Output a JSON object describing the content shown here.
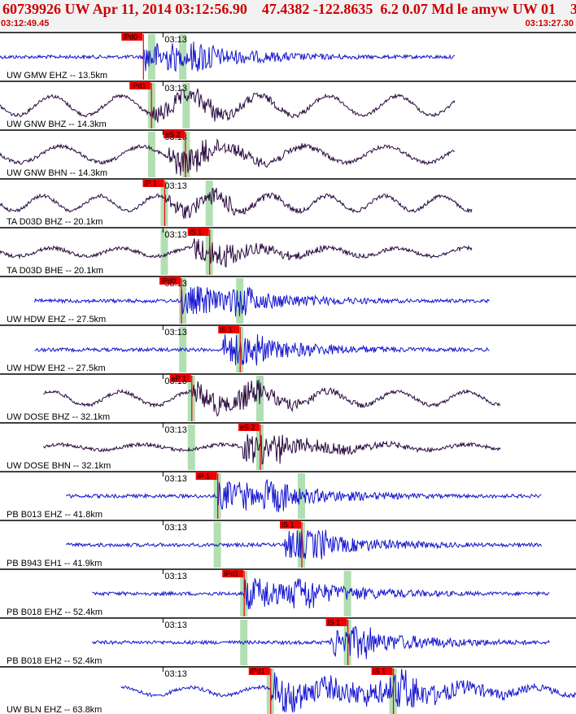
{
  "header": {
    "title": "60739926 UW Apr 11, 2014 03:12:56.90    47.4382 -122.8635  6.2 0.07 Md le amyw UW 01    3",
    "start_time": "03:12:49.45",
    "end_time": "03:13:27.30"
  },
  "chart_data": {
    "type": "seismogram",
    "event": {
      "id": "60739926",
      "network": "UW",
      "date": "Apr 11, 2014",
      "origin_time": "03:12:56.90",
      "latitude": 47.4382,
      "longitude": -122.8635,
      "depth_km": 6.2,
      "magnitude": 0.07,
      "magnitude_type": "Md",
      "info": "le amyw UW 01",
      "count": 3
    },
    "time_window": {
      "start": "03:12:49.45",
      "end": "03:13:27.30"
    },
    "minute_marker_label": "03:13",
    "colors": {
      "velocity": "#1515d0",
      "broadband": "#2a0a40",
      "pick": "#ee0000",
      "window": "#a9dcaa",
      "header_text": "#cc0000",
      "separator": "#000000"
    },
    "traces": [
      {
        "label": "UW GMW EHZ -- 13.5km",
        "color": "#1515d0",
        "amp": 0.55,
        "lf": 0,
        "p_at": 0.249,
        "s_at": null,
        "p_label": "iPd0",
        "s_label": "",
        "end": 0.79,
        "start": 0.0,
        "gw": [
          0.264,
          0.318
        ]
      },
      {
        "label": "UW GNW BHZ -- 14.3km",
        "color": "#2a0a40",
        "amp": 0.35,
        "lf": 0.7,
        "p_at": 0.263,
        "s_at": null,
        "p_label": "iPd1",
        "s_label": "",
        "end": 0.79,
        "start": 0.0,
        "gw": [
          0.264,
          0.324
        ]
      },
      {
        "label": "UW GNW BHN -- 14.3km",
        "color": "#2a0a40",
        "amp": 0.5,
        "lf": 0.6,
        "p_at": null,
        "s_at": 0.322,
        "p_label": "",
        "s_label": "eS 2",
        "end": 0.79,
        "start": 0.0,
        "gw": [
          0.264,
          0.324
        ]
      },
      {
        "label": "TA D03D BHZ -- 20.1km",
        "color": "#2a0a40",
        "amp": 0.3,
        "lf": 0.55,
        "p_at": 0.286,
        "s_at": null,
        "p_label": "iP 1",
        "s_label": "",
        "end": 0.82,
        "start": 0.0,
        "gw": [
          0.286,
          0.364
        ]
      },
      {
        "label": "TA D03D BHE -- 20.1km",
        "color": "#2a0a40",
        "amp": 0.45,
        "lf": 0.3,
        "p_at": null,
        "s_at": 0.364,
        "p_label": "",
        "s_label": "iS 1",
        "end": 0.82,
        "start": 0.0,
        "gw": [
          0.286,
          0.364
        ]
      },
      {
        "label": "UW HDW EHZ -- 27.5km",
        "color": "#1515d0",
        "amp": 0.55,
        "lf": 0,
        "p_at": 0.315,
        "s_at": null,
        "p_label": "iPd0",
        "s_label": "",
        "end": 0.85,
        "start": 0.06,
        "gw": [
          0.318,
          0.417
        ]
      },
      {
        "label": "UW HDW EH2 -- 27.5km",
        "color": "#1515d0",
        "amp": 0.6,
        "lf": 0,
        "p_at": null,
        "s_at": 0.417,
        "p_label": "",
        "s_label": "iS 1",
        "end": 0.85,
        "start": 0.06,
        "gw": [
          0.318,
          0.417
        ]
      },
      {
        "label": "UW DOSE BHZ -- 32.1km",
        "color": "#2a0a40",
        "amp": 0.45,
        "lf": 0.5,
        "p_at": 0.333,
        "s_at": null,
        "p_label": "eP 1",
        "s_label": "",
        "end": 0.87,
        "start": 0.075,
        "gw": [
          0.333,
          0.452
        ]
      },
      {
        "label": "UW DOSE BHN -- 32.1km",
        "color": "#2a0a40",
        "amp": 0.55,
        "lf": 0.2,
        "p_at": null,
        "s_at": 0.452,
        "p_label": "",
        "s_label": "eS 2",
        "end": 0.87,
        "start": 0.075,
        "gw": [
          0.333,
          0.452
        ]
      },
      {
        "label": "PB B013 EHZ -- 41.8km",
        "color": "#1515d0",
        "amp": 0.55,
        "lf": 0,
        "p_at": 0.378,
        "s_at": null,
        "p_label": "iP 1",
        "s_label": "",
        "end": 0.94,
        "start": 0.115,
        "gw": [
          0.378,
          0.524
        ]
      },
      {
        "label": "PB B943 EH1 -- 41.9km",
        "color": "#1515d0",
        "amp": 0.55,
        "lf": 0,
        "p_at": null,
        "s_at": 0.524,
        "p_label": "",
        "s_label": "iS 1",
        "end": 0.94,
        "start": 0.115,
        "gw": [
          0.378,
          0.524
        ]
      },
      {
        "label": "PB B018 EHZ -- 52.4km",
        "color": "#1515d0",
        "amp": 0.6,
        "lf": 0,
        "p_at": 0.424,
        "s_at": null,
        "p_label": "iPd1",
        "s_label": "",
        "end": 0.955,
        "start": 0.16,
        "gw": [
          0.424,
          0.604
        ]
      },
      {
        "label": "PB B018 EH2 -- 52.4km",
        "color": "#1515d0",
        "amp": 0.6,
        "lf": 0,
        "p_at": null,
        "s_at": 0.604,
        "p_label": "",
        "s_label": "iS 1",
        "end": 0.955,
        "start": 0.16,
        "gw": [
          0.424,
          0.604
        ]
      },
      {
        "label": "UW BLN EHZ -- 63.8km",
        "color": "#1515d0",
        "amp": 0.7,
        "lf": 0.3,
        "p_at": 0.47,
        "s_at": 0.683,
        "p_label": "iPd1",
        "s_label": "iS 1",
        "end": 1.0,
        "start": 0.21,
        "gw": [
          0.47,
          0.683
        ]
      }
    ]
  }
}
